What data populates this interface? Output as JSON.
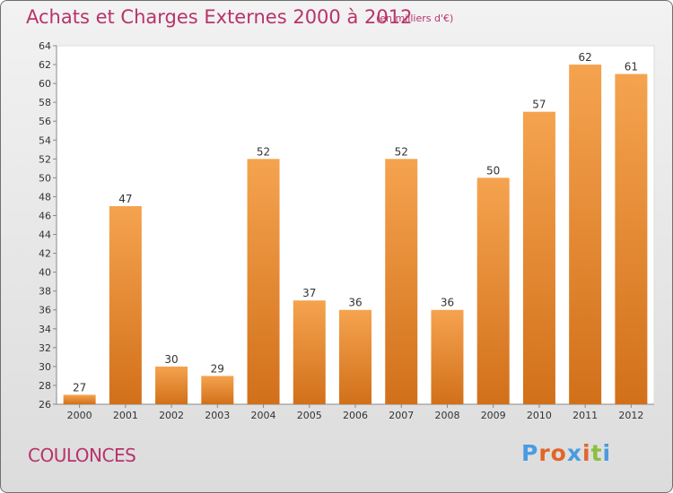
{
  "header": {
    "title": "Achats et Charges Externes 2000 à 2012",
    "unit": "(en milliers d'€)"
  },
  "footer": {
    "commune": "COULONCES",
    "logo": "Proxiti"
  },
  "colors": {
    "title": "#b8336a",
    "bar_light": "#f5a34f",
    "bar_dark": "#d2701a",
    "logo_letters": [
      "#4a9be0",
      "#e0662a",
      "#e0662a",
      "#4a9be0",
      "#e0662a",
      "#8abf3e",
      "#4a9be0"
    ]
  },
  "chart_data": {
    "type": "bar",
    "categories": [
      "2000",
      "2001",
      "2002",
      "2003",
      "2004",
      "2005",
      "2006",
      "2007",
      "2008",
      "2009",
      "2010",
      "2011",
      "2012"
    ],
    "values": [
      27,
      47,
      30,
      29,
      52,
      37,
      36,
      52,
      36,
      50,
      57,
      62,
      61
    ],
    "ylim": [
      26,
      64
    ],
    "yticks": [
      26,
      28,
      30,
      32,
      34,
      36,
      38,
      40,
      42,
      44,
      46,
      48,
      50,
      52,
      54,
      56,
      58,
      60,
      62,
      64
    ],
    "grid": false,
    "data_labels": true
  }
}
